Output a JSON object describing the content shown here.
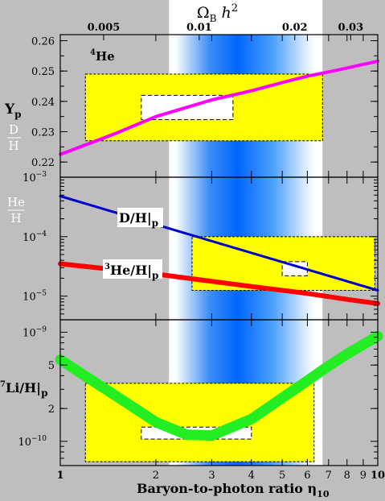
{
  "top_axis": {
    "label_main": "Ω",
    "label_sub": "B",
    "label_h": "h",
    "label_sup": "2",
    "ticks": [
      {
        "value": 0.005,
        "label": "0.005"
      },
      {
        "value": 0.01,
        "label": "0.01"
      },
      {
        "value": 0.02,
        "label": "0.02"
      },
      {
        "value": 0.03,
        "label": "0.03"
      }
    ]
  },
  "x_axis": {
    "label": "Baryon-to-photon ratio η",
    "label_sub": "10",
    "scale": "log",
    "range": [
      1,
      10
    ],
    "ticks": [
      {
        "value": 1,
        "label": "1"
      },
      {
        "value": 2,
        "label": "2"
      },
      {
        "value": 3,
        "label": "3"
      },
      {
        "value": 4,
        "label": "4"
      },
      {
        "value": 5,
        "label": "5"
      },
      {
        "value": 6,
        "label": "6"
      },
      {
        "value": 7,
        "label": "7"
      },
      {
        "value": 8,
        "label": "8"
      },
      {
        "value": 9,
        "label": "9"
      },
      {
        "value": 10,
        "label": "10"
      }
    ]
  },
  "bands": {
    "background_band": [
      2.2,
      6.7
    ],
    "cmb_band": [
      2.3,
      6.3
    ],
    "cmb_peak": 2.9
  },
  "colors": {
    "background": "#bebebe",
    "band_white": "#ffffff",
    "cmb_blue": "#0066ff",
    "yellow": "#ffff00",
    "helium4": "#ff00ff",
    "deuterium": "#0000cc",
    "helium3": "#ff0000",
    "lithium7": "#22ee22"
  },
  "chart_data": [
    {
      "type": "line",
      "panel": "helium-4",
      "ylabel": "Y",
      "ylabel_sub": "p",
      "ylabel2_num": "D",
      "ylabel2_den": "H",
      "annotation": "He",
      "annotation_sup": "4",
      "ylim": [
        0.215,
        0.262
      ],
      "yticks": [
        {
          "value": 0.22,
          "label": "0.22"
        },
        {
          "value": 0.23,
          "label": "0.23"
        },
        {
          "value": 0.24,
          "label": "0.24"
        },
        {
          "value": 0.25,
          "label": "0.25"
        },
        {
          "value": 0.26,
          "label": "0.26"
        }
      ],
      "series": [
        {
          "x": [
            1,
            1.5,
            2,
            3,
            4,
            5,
            6,
            7,
            8,
            9,
            10
          ],
          "y": [
            0.2225,
            0.2295,
            0.235,
            0.2405,
            0.2435,
            0.2462,
            0.2483,
            0.2497,
            0.251,
            0.2522,
            0.2532
          ]
        }
      ],
      "obs_box": {
        "x": [
          1.2,
          6.7
        ],
        "y": [
          0.227,
          0.249
        ]
      },
      "inner_box": {
        "x": [
          1.8,
          3.5
        ],
        "y": [
          0.234,
          0.242
        ]
      }
    },
    {
      "type": "line",
      "panel": "deuterium-helium-3",
      "ylabel_num": "He",
      "ylabel_den": "H",
      "scale": "log",
      "ylim": [
        4e-06,
        0.001
      ],
      "yticks": [
        {
          "value": 0.001,
          "label": "10",
          "exp": "−3"
        },
        {
          "value": 0.0001,
          "label": "10",
          "exp": "−4"
        },
        {
          "value": 1e-05,
          "label": "10",
          "exp": "−5"
        }
      ],
      "series": [
        {
          "label": "D/H|",
          "label_sub": "p",
          "x": [
            1,
            10
          ],
          "y": [
            0.00048,
            1.25e-05
          ]
        },
        {
          "label": "He/H|",
          "label_sup": "3",
          "label_sub": "p",
          "x": [
            1,
            2,
            4,
            6,
            8,
            10
          ],
          "y": [
            3.5e-05,
            2.35e-05,
            1.45e-05,
            1.11e-05,
            8.8e-06,
            7.5e-06
          ]
        }
      ],
      "obs_box": {
        "x": [
          2.6,
          9.8
        ],
        "y": [
          1.25e-05,
          0.0001
        ]
      },
      "inner_box": {
        "x": [
          5.0,
          6.0
        ],
        "y": [
          2.2e-05,
          3.8e-05
        ]
      }
    },
    {
      "type": "line",
      "panel": "lithium-7",
      "ylabel": "Li/H|",
      "ylabel_sup": "7",
      "ylabel_sub": "p",
      "scale": "log",
      "ylim": [
        6e-11,
        1.3e-09
      ],
      "yticks": [
        {
          "value": 1e-09,
          "label": "10",
          "exp": "−9"
        },
        {
          "value": 5e-10,
          "label": "5"
        },
        {
          "value": 2e-10,
          "label": "2"
        },
        {
          "value": 1e-10,
          "label": "10",
          "exp": "−10"
        }
      ],
      "series": [
        {
          "x": [
            1,
            1.3,
            1.6,
            2,
            2.5,
            3,
            4,
            5,
            6,
            7,
            8,
            10
          ],
          "y": [
            5.6e-10,
            3.4e-10,
            2.3e-10,
            1.5e-10,
            1.15e-10,
            1.13e-10,
            1.6e-10,
            2.5e-10,
            3.6e-10,
            4.9e-10,
            6.3e-10,
            9.2e-10
          ]
        }
      ],
      "obs_box": {
        "x": [
          1.2,
          6.3
        ],
        "y": [
          6.5e-11,
          3.4e-10
        ]
      },
      "inner_box": {
        "x": [
          1.8,
          4.0
        ],
        "y": [
          1.05e-10,
          1.35e-10
        ]
      }
    }
  ]
}
